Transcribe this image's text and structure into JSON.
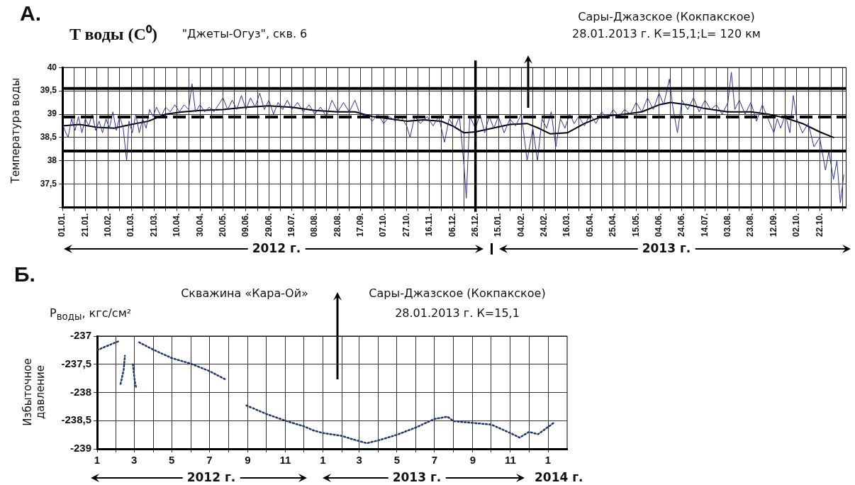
{
  "chart_data": [
    {
      "type": "line",
      "title": "\"Джеты-Огуз\", скв. 6",
      "ylabel": "Температура воды",
      "annotations": [
        "А.",
        "T воды (C⁰)",
        "Сары-Джазское (Кокпакское)",
        "28.01.2013 г. К=15,1;L= 120 км",
        "2012 г.",
        "2013 г."
      ],
      "xlim": [
        "2012-01-01",
        "2013-11-14"
      ],
      "ylim": [
        37,
        40
      ],
      "xticks": [
        {
          "value": "2012-01-01",
          "label": "01.01."
        },
        {
          "value": "2012-01-11",
          "label": null
        },
        {
          "value": "2012-01-21",
          "label": "21.01."
        },
        {
          "value": "2012-01-31",
          "label": null
        },
        {
          "value": "2012-02-10",
          "label": "10.02."
        },
        {
          "value": "2012-02-20",
          "label": null
        },
        {
          "value": "2012-03-01",
          "label": "01.03."
        },
        {
          "value": "2012-03-11",
          "label": null
        },
        {
          "value": "2012-03-21",
          "label": "21.03."
        },
        {
          "value": "2012-03-31",
          "label": null
        },
        {
          "value": "2012-04-10",
          "label": "10.04."
        },
        {
          "value": "2012-04-20",
          "label": null
        },
        {
          "value": "2012-04-30",
          "label": "30.04."
        },
        {
          "value": "2012-05-10",
          "label": null
        },
        {
          "value": "2012-05-20",
          "label": "20.05."
        },
        {
          "value": "2012-05-30",
          "label": null
        },
        {
          "value": "2012-06-09",
          "label": "09.06."
        },
        {
          "value": "2012-06-19",
          "label": null
        },
        {
          "value": "2012-06-29",
          "label": "29.06."
        },
        {
          "value": "2012-07-09",
          "label": null
        },
        {
          "value": "2012-07-19",
          "label": "19.07."
        },
        {
          "value": "2012-07-29",
          "label": null
        },
        {
          "value": "2012-08-08",
          "label": "08.08."
        },
        {
          "value": "2012-08-18",
          "label": null
        },
        {
          "value": "2012-08-28",
          "label": "28.08."
        },
        {
          "value": "2012-09-07",
          "label": null
        },
        {
          "value": "2012-09-17",
          "label": "17.09."
        },
        {
          "value": "2012-09-27",
          "label": null
        },
        {
          "value": "2012-10-07",
          "label": "07.10."
        },
        {
          "value": "2012-10-17",
          "label": null
        },
        {
          "value": "2012-10-27",
          "label": "27.10."
        },
        {
          "value": "2012-11-06",
          "label": null
        },
        {
          "value": "2012-11-16",
          "label": "16.11."
        },
        {
          "value": "2012-11-26",
          "label": null
        },
        {
          "value": "2012-12-06",
          "label": "06.12."
        },
        {
          "value": "2012-12-16",
          "label": null
        },
        {
          "value": "2012-12-26",
          "label": "26.12."
        },
        {
          "value": "2013-01-05",
          "label": null
        },
        {
          "value": "2013-01-15",
          "label": "15.01."
        },
        {
          "value": "2013-01-25",
          "label": null
        },
        {
          "value": "2013-02-04",
          "label": "04.02."
        },
        {
          "value": "2013-02-14",
          "label": null
        },
        {
          "value": "2013-02-24",
          "label": "24.02."
        },
        {
          "value": "2013-03-06",
          "label": null
        },
        {
          "value": "2013-03-16",
          "label": "16.03."
        },
        {
          "value": "2013-03-26",
          "label": null
        },
        {
          "value": "2013-04-05",
          "label": "05.04."
        },
        {
          "value": "2013-04-15",
          "label": null
        },
        {
          "value": "2013-04-25",
          "label": "25.04."
        },
        {
          "value": "2013-05-05",
          "label": null
        },
        {
          "value": "2013-05-15",
          "label": "15.05."
        },
        {
          "value": "2013-05-25",
          "label": null
        },
        {
          "value": "2013-06-04",
          "label": "04.06."
        },
        {
          "value": "2013-06-14",
          "label": null
        },
        {
          "value": "2013-06-24",
          "label": "24.06."
        },
        {
          "value": "2013-07-04",
          "label": null
        },
        {
          "value": "2013-07-14",
          "label": "14.07."
        },
        {
          "value": "2013-07-24",
          "label": null
        },
        {
          "value": "2013-08-03",
          "label": "03.08."
        },
        {
          "value": "2013-08-13",
          "label": null
        },
        {
          "value": "2013-08-23",
          "label": "23.08."
        },
        {
          "value": "2013-09-02",
          "label": null
        },
        {
          "value": "2013-09-12",
          "label": "12.09."
        },
        {
          "value": "2013-09-22",
          "label": null
        },
        {
          "value": "2013-10-02",
          "label": "02.10."
        },
        {
          "value": "2013-10-12",
          "label": null
        },
        {
          "value": "2013-10-22",
          "label": "22.10."
        },
        {
          "value": "2013-11-01",
          "label": null
        },
        {
          "value": "2013-11-11",
          "label": null
        }
      ],
      "yticks": [
        {
          "value": 37,
          "label": null
        },
        {
          "value": 37.5,
          "label": "37,5"
        },
        38,
        {
          "value": 38.5,
          "label": "38,5"
        },
        39,
        {
          "value": 39.5,
          "label": "39,5"
        },
        40
      ],
      "grid": true,
      "legend": false,
      "marker": "none",
      "ref_lines": [
        {
          "axis": "y",
          "value": 39.55,
          "color": "#000000",
          "line_style": "solid"
        },
        {
          "axis": "y",
          "value": 38.94,
          "color": "#000000",
          "line_style": "dashed"
        },
        {
          "axis": "y",
          "value": 38.21,
          "color": "#000000",
          "line_style": "solid"
        },
        {
          "axis": "x",
          "value": "2012-12-26",
          "color": "#000000",
          "line_style": "solid"
        }
      ],
      "series": [
        {
          "color": "#2e3192",
          "line_style": "solid",
          "x": [
            "2012-01-01",
            "2012-01-04",
            "2012-01-06",
            "2012-01-09",
            "2012-01-12",
            "2012-01-15",
            "2012-01-18",
            "2012-01-21",
            "2012-01-24",
            "2012-01-27",
            "2012-01-30",
            "2012-02-02",
            "2012-02-05",
            "2012-02-08",
            "2012-02-11",
            "2012-02-14",
            "2012-02-17",
            "2012-02-20",
            "2012-02-23",
            "2012-02-26",
            "2012-02-28",
            "2012-03-02",
            "2012-03-05",
            "2012-03-08",
            "2012-03-11",
            "2012-03-14",
            "2012-03-17",
            "2012-03-20",
            "2012-03-23",
            "2012-03-27",
            "2012-03-31",
            "2012-04-04",
            "2012-04-08",
            "2012-04-12",
            "2012-04-16",
            "2012-04-20",
            "2012-04-23",
            "2012-04-26",
            "2012-04-30",
            "2012-05-04",
            "2012-05-08",
            "2012-05-12",
            "2012-05-16",
            "2012-05-20",
            "2012-05-24",
            "2012-05-28",
            "2012-06-01",
            "2012-06-05",
            "2012-06-09",
            "2012-06-13",
            "2012-06-17",
            "2012-06-21",
            "2012-06-25",
            "2012-06-29",
            "2012-07-03",
            "2012-07-07",
            "2012-07-11",
            "2012-07-15",
            "2012-07-19",
            "2012-07-24",
            "2012-07-29",
            "2012-08-03",
            "2012-08-08",
            "2012-08-13",
            "2012-08-18",
            "2012-08-23",
            "2012-08-28",
            "2012-09-02",
            "2012-09-07",
            "2012-09-12",
            "2012-09-17",
            "2012-09-22",
            "2012-09-27",
            "2012-10-02",
            "2012-10-07",
            "2012-10-12",
            "2012-10-17",
            "2012-10-22",
            "2012-10-27",
            "2012-10-30",
            "2012-11-03",
            "2012-11-08",
            "2012-11-14",
            "2012-11-19",
            "2012-11-24",
            "2012-11-29",
            "2012-12-03",
            "2012-12-08",
            "2012-12-12",
            "2012-12-16",
            "2012-12-18",
            "2012-12-21",
            "2012-12-26",
            "2012-12-30",
            "2013-01-03",
            "2013-01-07",
            "2013-01-11",
            "2013-01-15",
            "2013-01-20",
            "2013-01-25",
            "2013-01-30",
            "2013-02-04",
            "2013-02-09",
            "2013-02-14",
            "2013-02-18",
            "2013-02-22",
            "2013-02-26",
            "2013-03-02",
            "2013-03-06",
            "2013-03-10",
            "2013-03-14",
            "2013-03-18",
            "2013-03-22",
            "2013-03-26",
            "2013-03-31",
            "2013-04-05",
            "2013-04-10",
            "2013-04-15",
            "2013-04-20",
            "2013-04-25",
            "2013-04-30",
            "2013-05-05",
            "2013-05-10",
            "2013-05-15",
            "2013-05-20",
            "2013-05-25",
            "2013-05-30",
            "2013-06-04",
            "2013-06-08",
            "2013-06-13",
            "2013-06-16",
            "2013-06-20",
            "2013-06-24",
            "2013-06-29",
            "2013-07-04",
            "2013-07-09",
            "2013-07-14",
            "2013-07-19",
            "2013-07-24",
            "2013-07-29",
            "2013-08-03",
            "2013-08-06",
            "2013-08-09",
            "2013-08-13",
            "2013-08-18",
            "2013-08-23",
            "2013-08-28",
            "2013-09-02",
            "2013-09-07",
            "2013-09-12",
            "2013-09-15",
            "2013-09-18",
            "2013-09-22",
            "2013-09-26",
            "2013-09-29",
            "2013-10-02",
            "2013-10-07",
            "2013-10-12",
            "2013-10-17",
            "2013-10-22",
            "2013-10-27",
            "2013-10-30",
            "2013-11-03",
            "2013-11-06",
            "2013-11-09",
            "2013-11-12"
          ],
          "values": [
            38.8,
            38.6,
            38.5,
            38.9,
            38.65,
            38.95,
            38.6,
            38.9,
            38.75,
            39.0,
            38.65,
            38.85,
            38.6,
            38.9,
            38.7,
            39.05,
            38.65,
            38.95,
            38.7,
            38.0,
            38.85,
            38.6,
            39.0,
            38.6,
            38.9,
            38.7,
            39.1,
            38.95,
            39.15,
            38.95,
            39.15,
            39.05,
            39.2,
            39.05,
            39.2,
            39.1,
            39.65,
            39.05,
            39.2,
            39.05,
            39.15,
            39.05,
            39.2,
            39.35,
            39.1,
            39.3,
            39.1,
            39.4,
            39.1,
            39.35,
            39.15,
            39.45,
            39.1,
            39.3,
            39.0,
            39.25,
            39.1,
            39.3,
            39.1,
            39.25,
            39.05,
            39.2,
            39.0,
            39.15,
            38.95,
            39.3,
            39.05,
            39.25,
            39.05,
            39.3,
            38.95,
            39.0,
            38.85,
            39.0,
            38.8,
            38.95,
            38.85,
            38.95,
            38.75,
            38.5,
            38.95,
            38.8,
            38.95,
            38.75,
            38.95,
            38.4,
            38.9,
            38.7,
            38.95,
            37.9,
            37.2,
            38.95,
            38.7,
            39.0,
            38.6,
            38.95,
            38.7,
            38.95,
            38.6,
            38.9,
            38.75,
            39.0,
            38.0,
            38.7,
            38.0,
            38.9,
            38.7,
            39.05,
            38.3,
            38.9,
            38.7,
            39.0,
            38.8,
            38.95,
            38.75,
            39.0,
            38.8,
            39.05,
            38.9,
            39.1,
            38.95,
            39.1,
            39.0,
            39.25,
            39.05,
            39.35,
            39.1,
            39.45,
            39.2,
            39.75,
            39.15,
            38.6,
            39.3,
            39.1,
            39.35,
            39.05,
            39.3,
            39.1,
            39.2,
            39.0,
            39.25,
            39.9,
            39.1,
            39.3,
            39.0,
            39.25,
            38.85,
            39.2,
            38.9,
            38.6,
            38.9,
            38.7,
            39.0,
            38.6,
            39.4,
            38.9,
            38.6,
            38.8,
            38.3,
            38.5,
            37.8,
            38.2,
            37.6,
            38.0,
            37.1,
            37.7
          ]
        },
        {
          "color": "#000000",
          "line_style": "solid",
          "x": [
            "2012-01-01",
            "2012-01-16",
            "2012-01-31",
            "2012-02-15",
            "2012-03-01",
            "2012-03-16",
            "2012-03-31",
            "2012-04-15",
            "2012-04-30",
            "2012-05-20",
            "2012-06-09",
            "2012-06-29",
            "2012-07-19",
            "2012-08-08",
            "2012-08-28",
            "2012-09-12",
            "2012-09-27",
            "2012-10-12",
            "2012-10-27",
            "2012-11-11",
            "2012-11-26",
            "2012-12-06",
            "2012-12-16",
            "2012-12-26",
            "2013-01-10",
            "2013-01-25",
            "2013-02-09",
            "2013-02-19",
            "2013-03-01",
            "2013-03-16",
            "2013-03-31",
            "2013-04-15",
            "2013-05-05",
            "2013-05-20",
            "2013-06-04",
            "2013-06-14",
            "2013-06-29",
            "2013-07-14",
            "2013-08-03",
            "2013-08-23",
            "2013-09-07",
            "2013-09-22",
            "2013-10-07",
            "2013-10-22",
            "2013-11-03"
          ],
          "values": [
            38.75,
            38.78,
            38.72,
            38.7,
            38.78,
            38.85,
            39.0,
            39.05,
            39.08,
            39.1,
            39.15,
            39.18,
            39.15,
            39.08,
            39.05,
            39.05,
            38.95,
            38.9,
            38.85,
            38.88,
            38.85,
            38.75,
            38.6,
            38.62,
            38.7,
            38.78,
            38.8,
            38.7,
            38.58,
            38.6,
            38.8,
            38.95,
            39.0,
            39.05,
            39.2,
            39.25,
            39.2,
            39.12,
            39.05,
            39.05,
            39.0,
            38.92,
            38.8,
            38.62,
            38.5
          ]
        }
      ]
    },
    {
      "type": "line",
      "title": "Скважина «Кара-Ой»",
      "ylabel": "Избыточное давление",
      "annotations": [
        "Б.",
        "P$_{воды}$, кгс/см²",
        "Сары-Джазское (Кокпакское)",
        "28.01.2013 г. К=15,1",
        "2012 г.",
        "2013 г.",
        "2014 г."
      ],
      "xlim": [
        "2012-01-01",
        "2014-02-01"
      ],
      "ylim": [
        -239,
        -237
      ],
      "xticks": [
        {
          "value": "2012-01",
          "label": "1"
        },
        {
          "value": "2012-02",
          "label": null
        },
        {
          "value": "2012-03",
          "label": "3"
        },
        {
          "value": "2012-04",
          "label": null
        },
        {
          "value": "2012-05",
          "label": "5"
        },
        {
          "value": "2012-06",
          "label": null
        },
        {
          "value": "2012-07",
          "label": "7"
        },
        {
          "value": "2012-08",
          "label": null
        },
        {
          "value": "2012-09",
          "label": "9"
        },
        {
          "value": "2012-10",
          "label": null
        },
        {
          "value": "2012-11",
          "label": "11"
        },
        {
          "value": "2012-12",
          "label": null
        },
        {
          "value": "2013-01",
          "label": "1"
        },
        {
          "value": "2013-02",
          "label": null
        },
        {
          "value": "2013-03",
          "label": "3"
        },
        {
          "value": "2013-04",
          "label": null
        },
        {
          "value": "2013-05",
          "label": "5"
        },
        {
          "value": "2013-06",
          "label": null
        },
        {
          "value": "2013-07",
          "label": "7"
        },
        {
          "value": "2013-08",
          "label": null
        },
        {
          "value": "2013-09",
          "label": "9"
        },
        {
          "value": "2013-10",
          "label": null
        },
        {
          "value": "2013-11",
          "label": "11"
        },
        {
          "value": "2013-12",
          "label": null
        },
        {
          "value": "2014-01",
          "label": "1"
        }
      ],
      "yticks": [
        -239,
        {
          "value": -238.5,
          "label": "-238,5"
        },
        -238,
        {
          "value": -237.5,
          "label": "-237,5"
        },
        -237
      ],
      "grid": true,
      "legend": false,
      "marker": "none",
      "series": [
        {
          "color": "#1f3870",
          "line_style": "dotted",
          "x": [
            "2012-01-01",
            "2012-01-16",
            "2012-02-05",
            "2012-02-06",
            "2012-02-08",
            "2012-02-13",
            "2012-02-15",
            "2012-02-20",
            "2012-02-28",
            "2012-03-02",
            "2012-03-04",
            "2012-03-06",
            "2012-03-09",
            "2012-04-01",
            "2012-05-01",
            "2012-06-01",
            "2012-07-01",
            "2012-07-29",
            "2012-08-15",
            "2012-08-30",
            "2012-10-01",
            "2012-11-01",
            "2012-12-01",
            "2012-12-16",
            "2013-01-01",
            "2013-02-01",
            "2013-02-15",
            "2013-03-13",
            "2013-04-01",
            "2013-05-01",
            "2013-06-01",
            "2013-07-01",
            "2013-07-22",
            "2013-08-01",
            "2013-09-01",
            "2013-10-01",
            "2013-11-01",
            "2013-11-16",
            "2013-12-01",
            "2013-12-16",
            "2014-01-10"
          ],
          "values": [
            -237.25,
            -237.18,
            -237.09,
            null,
            -237.85,
            -237.6,
            -237.35,
            null,
            -237.5,
            -237.8,
            -237.9,
            null,
            -237.11,
            -237.24,
            -237.39,
            -237.49,
            -237.62,
            -237.78,
            null,
            -238.23,
            -238.38,
            -238.5,
            -238.6,
            -238.67,
            -238.72,
            -238.77,
            -238.82,
            -238.9,
            -238.85,
            -238.75,
            -238.62,
            -238.47,
            -238.43,
            -238.51,
            -238.54,
            -238.57,
            -238.72,
            -238.8,
            -238.7,
            -238.74,
            -238.54
          ]
        }
      ]
    }
  ]
}
